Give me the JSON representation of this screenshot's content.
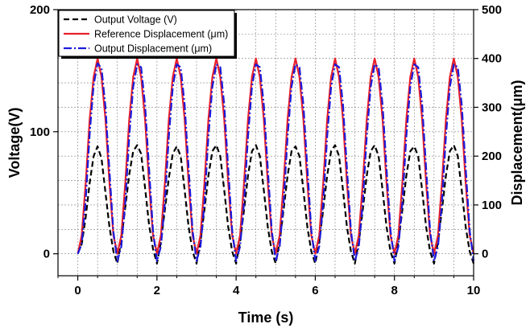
{
  "chart_data": {
    "type": "line",
    "xlabel": "Time (s)",
    "ylabel_left": "Voltage(V)",
    "ylabel_right": "Displacement(μm)",
    "xlim": [
      -0.5,
      10
    ],
    "ylim_left": [
      -18,
      200
    ],
    "ylim_right": [
      -45,
      500
    ],
    "x_ticks": [
      0,
      2,
      4,
      6,
      8,
      10
    ],
    "y_left_ticks": [
      0,
      100,
      200
    ],
    "y_right_ticks": [
      0,
      100,
      200,
      300,
      400,
      500
    ],
    "grid": true,
    "legend_position": "top-left",
    "series": [
      {
        "name": "Output Voltage (V)",
        "axis": "left",
        "color": "#000000",
        "style": "dash",
        "x": [
          0.0,
          0.1,
          0.2,
          0.3,
          0.4,
          0.5,
          0.6,
          0.7,
          0.8,
          0.9,
          1.0,
          1.1,
          1.2,
          1.3,
          1.4,
          1.5,
          1.6,
          1.7,
          1.8,
          1.9,
          2.0,
          2.1,
          2.2,
          2.3,
          2.4,
          2.5,
          2.6,
          2.7,
          2.8,
          2.9,
          3.0,
          3.1,
          3.2,
          3.3,
          3.4,
          3.5,
          3.6,
          3.7,
          3.8,
          3.9,
          4.0,
          4.1,
          4.2,
          4.3,
          4.4,
          4.5,
          4.6,
          4.7,
          4.8,
          4.9,
          5.0,
          5.1,
          5.2,
          5.3,
          5.4,
          5.5,
          5.6,
          5.7,
          5.8,
          5.9,
          6.0,
          6.1,
          6.2,
          6.3,
          6.4,
          6.5,
          6.6,
          6.7,
          6.8,
          6.9,
          7.0,
          7.1,
          7.2,
          7.3,
          7.4,
          7.5,
          7.6,
          7.7,
          7.8,
          7.9,
          8.0,
          8.1,
          8.2,
          8.3,
          8.4,
          8.5,
          8.6,
          8.7,
          8.8,
          8.9,
          9.0,
          9.1,
          9.2,
          9.3,
          9.4,
          9.5,
          9.6,
          9.7,
          9.8,
          9.9,
          10.0
        ],
        "y": [
          0,
          8,
          30,
          58,
          80,
          88,
          78,
          50,
          22,
          2,
          -8,
          12,
          38,
          65,
          84,
          89,
          82,
          54,
          24,
          4,
          -8,
          10,
          36,
          62,
          82,
          88,
          80,
          52,
          22,
          2,
          -8,
          10,
          36,
          64,
          84,
          89,
          80,
          52,
          22,
          2,
          -8,
          10,
          36,
          64,
          84,
          89,
          80,
          52,
          22,
          2,
          -8,
          10,
          36,
          64,
          84,
          88,
          80,
          52,
          22,
          2,
          -8,
          10,
          36,
          64,
          84,
          89,
          80,
          52,
          22,
          2,
          -8,
          10,
          36,
          64,
          84,
          89,
          80,
          52,
          22,
          2,
          -8,
          10,
          36,
          64,
          84,
          88,
          80,
          52,
          22,
          2,
          -8,
          10,
          36,
          64,
          84,
          89,
          80,
          52,
          22,
          2,
          -8
        ]
      },
      {
        "name": "Reference Displacement (μm)",
        "axis": "right",
        "color": "#e8202a",
        "style": "solid",
        "x": [
          0.0,
          0.1,
          0.2,
          0.3,
          0.4,
          0.5,
          0.6,
          0.7,
          0.8,
          0.9,
          1.0,
          1.1,
          1.2,
          1.3,
          1.4,
          1.5,
          1.6,
          1.7,
          1.8,
          1.9,
          2.0,
          2.1,
          2.2,
          2.3,
          2.4,
          2.5,
          2.6,
          2.7,
          2.8,
          2.9,
          3.0,
          3.1,
          3.2,
          3.3,
          3.4,
          3.5,
          3.6,
          3.7,
          3.8,
          3.9,
          4.0,
          4.1,
          4.2,
          4.3,
          4.4,
          4.5,
          4.6,
          4.7,
          4.8,
          4.9,
          5.0,
          5.1,
          5.2,
          5.3,
          5.4,
          5.5,
          5.6,
          5.7,
          5.8,
          5.9,
          6.0,
          6.1,
          6.2,
          6.3,
          6.4,
          6.5,
          6.6,
          6.7,
          6.8,
          6.9,
          7.0,
          7.1,
          7.2,
          7.3,
          7.4,
          7.5,
          7.6,
          7.7,
          7.8,
          7.9,
          8.0,
          8.1,
          8.2,
          8.3,
          8.4,
          8.5,
          8.6,
          8.7,
          8.8,
          8.9,
          9.0,
          9.1,
          9.2,
          9.3,
          9.4,
          9.5,
          9.6,
          9.7,
          9.8,
          9.9,
          10.0
        ],
        "y": [
          0,
          38,
          145,
          275,
          362,
          400,
          362,
          275,
          145,
          38,
          0,
          38,
          145,
          275,
          362,
          400,
          362,
          275,
          145,
          38,
          0,
          38,
          145,
          275,
          362,
          400,
          362,
          275,
          145,
          38,
          0,
          38,
          145,
          275,
          362,
          400,
          362,
          275,
          145,
          38,
          0,
          38,
          145,
          275,
          362,
          400,
          362,
          275,
          145,
          38,
          0,
          38,
          145,
          275,
          362,
          400,
          362,
          275,
          145,
          38,
          0,
          38,
          145,
          275,
          362,
          400,
          362,
          275,
          145,
          38,
          0,
          38,
          145,
          275,
          362,
          400,
          362,
          275,
          145,
          38,
          0,
          38,
          145,
          275,
          362,
          400,
          362,
          275,
          145,
          38,
          0,
          38,
          145,
          275,
          362,
          400,
          362,
          275,
          145,
          38,
          0
        ]
      },
      {
        "name": "Output Displacement (μm)",
        "axis": "right",
        "color": "#1a1adb",
        "style": "dashdot",
        "x": [
          0.0,
          0.1,
          0.2,
          0.3,
          0.4,
          0.5,
          0.6,
          0.7,
          0.8,
          0.9,
          1.0,
          1.1,
          1.2,
          1.3,
          1.4,
          1.5,
          1.6,
          1.7,
          1.8,
          1.9,
          2.0,
          2.1,
          2.2,
          2.3,
          2.4,
          2.5,
          2.6,
          2.7,
          2.8,
          2.9,
          3.0,
          3.1,
          3.2,
          3.3,
          3.4,
          3.5,
          3.6,
          3.7,
          3.8,
          3.9,
          4.0,
          4.1,
          4.2,
          4.3,
          4.4,
          4.5,
          4.6,
          4.7,
          4.8,
          4.9,
          5.0,
          5.1,
          5.2,
          5.3,
          5.4,
          5.5,
          5.6,
          5.7,
          5.8,
          5.9,
          6.0,
          6.1,
          6.2,
          6.3,
          6.4,
          6.5,
          6.6,
          6.7,
          6.8,
          6.9,
          7.0,
          7.1,
          7.2,
          7.3,
          7.4,
          7.5,
          7.6,
          7.7,
          7.8,
          7.9,
          8.0,
          8.1,
          8.2,
          8.3,
          8.4,
          8.5,
          8.6,
          8.7,
          8.8,
          8.9,
          9.0,
          9.1,
          9.2,
          9.3,
          9.4,
          9.5,
          9.6,
          9.7,
          9.8,
          9.9,
          10.0
        ],
        "y": [
          0,
          20,
          110,
          245,
          345,
          390,
          380,
          300,
          170,
          45,
          -15,
          15,
          105,
          240,
          342,
          388,
          382,
          305,
          175,
          48,
          -15,
          15,
          105,
          240,
          342,
          388,
          382,
          305,
          175,
          48,
          -15,
          15,
          105,
          240,
          342,
          388,
          382,
          305,
          175,
          48,
          -15,
          15,
          105,
          240,
          342,
          388,
          382,
          305,
          175,
          48,
          -15,
          15,
          105,
          240,
          342,
          388,
          382,
          305,
          175,
          48,
          -15,
          15,
          105,
          240,
          342,
          388,
          382,
          305,
          175,
          48,
          -15,
          15,
          105,
          240,
          342,
          388,
          382,
          305,
          175,
          48,
          -15,
          15,
          105,
          240,
          342,
          388,
          382,
          305,
          175,
          48,
          -15,
          15,
          105,
          240,
          342,
          388,
          382,
          305,
          175,
          48,
          -15
        ]
      }
    ]
  }
}
